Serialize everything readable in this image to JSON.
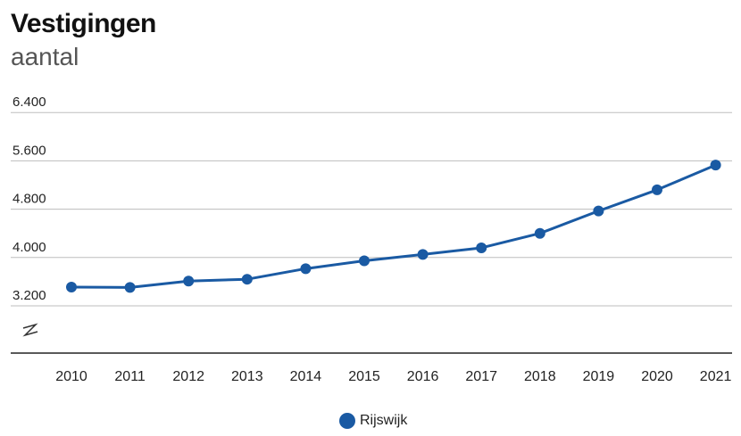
{
  "chart_data": {
    "type": "line",
    "title": "Vestigingen",
    "subtitle": "aantal",
    "xlabel": "",
    "ylabel": "",
    "categories": [
      "2010",
      "2011",
      "2012",
      "2013",
      "2014",
      "2015",
      "2016",
      "2017",
      "2018",
      "2019",
      "2020",
      "2021"
    ],
    "series": [
      {
        "name": "Rijswijk",
        "color": "#1a5aa3",
        "values": [
          3510,
          3505,
          3610,
          3640,
          3815,
          3945,
          4050,
          4160,
          4400,
          4770,
          5120,
          5530
        ]
      }
    ],
    "y_ticks": [
      3200,
      4000,
      4800,
      5600,
      6400
    ],
    "y_tick_labels": [
      "3.200",
      "4.000",
      "4.800",
      "5.600",
      "6.400"
    ],
    "ylim": [
      2600,
      6400
    ],
    "axis_break": true,
    "grid": true,
    "legend_position": "bottom-center"
  }
}
